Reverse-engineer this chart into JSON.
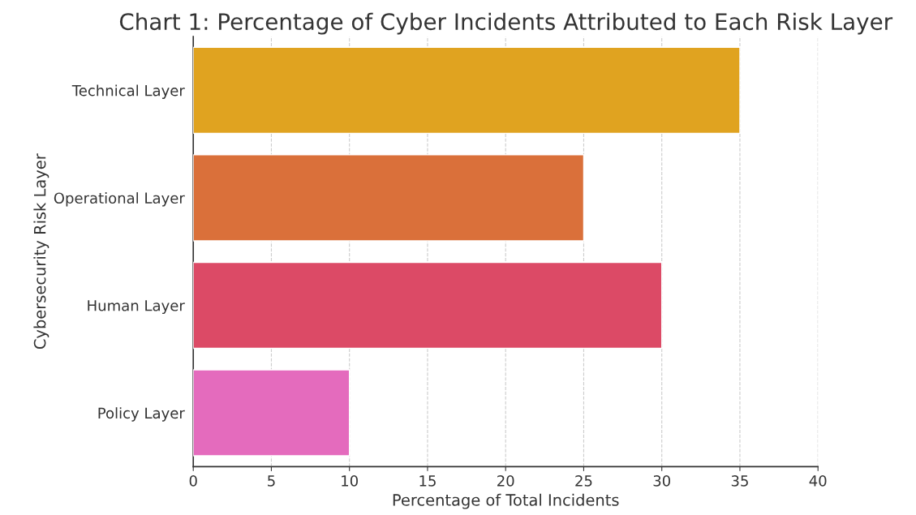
{
  "chart_data": {
    "type": "bar",
    "orientation": "horizontal",
    "title": "Chart 1: Percentage of Cyber Incidents Attributed to Each Risk Layer",
    "xlabel": "Percentage of Total Incidents",
    "ylabel": "Cybersecurity Risk Layer",
    "categories": [
      "Technical Layer",
      "Operational Layer",
      "Human Layer",
      "Policy Layer"
    ],
    "values": [
      35,
      25,
      30,
      10
    ],
    "colors": [
      "#e0a320",
      "#da703a",
      "#dc4a66",
      "#e46bbd"
    ],
    "xlim": [
      0,
      40
    ],
    "xticks": [
      0,
      5,
      10,
      15,
      20,
      25,
      30,
      35,
      40
    ],
    "grid": "x"
  }
}
